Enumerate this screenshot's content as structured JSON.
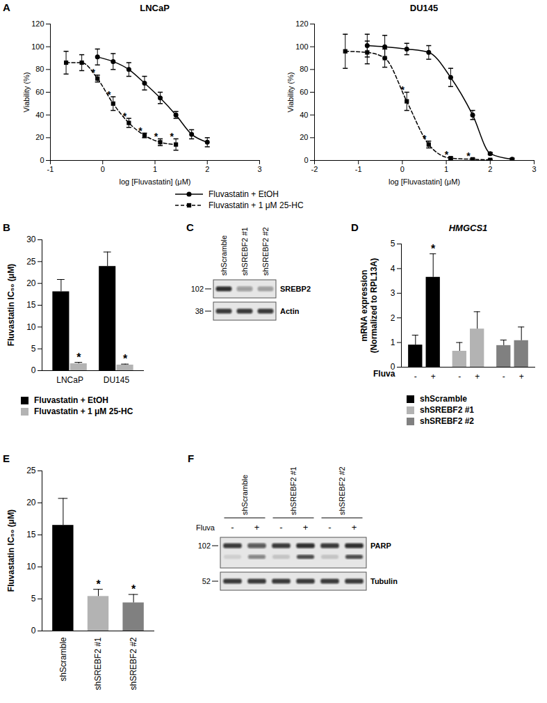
{
  "chart_data": [
    {
      "panel": "A",
      "type": "line",
      "title": "LNCaP",
      "x_label": "log [Fluvastatin] (μM)",
      "y_label": "Viability (%)",
      "x": [
        -0.7,
        -0.4,
        -0.1,
        0.2,
        0.5,
        0.8,
        1.1,
        1.4,
        1.7,
        2.0
      ],
      "xlim": [
        -1,
        3
      ],
      "xticks": [
        -1,
        0,
        1,
        2,
        3
      ],
      "ylim": [
        0,
        120
      ],
      "yticks": [
        0,
        20,
        40,
        60,
        80,
        100,
        120
      ],
      "legend": "bottom",
      "series": [
        {
          "name": "Fluvastatin + EtOH",
          "color": "#000000",
          "marker": "circle",
          "line_style": "solid",
          "values": [
            null,
            null,
            91,
            87,
            80,
            68,
            55,
            40,
            23,
            16
          ],
          "errors": [
            null,
            null,
            7,
            7,
            6,
            6,
            5,
            3,
            4,
            4
          ]
        },
        {
          "name": "Fluvastatin + 1 μM 25-HC",
          "color": "#000000",
          "marker": "square",
          "line_style": "dashed",
          "values": [
            86,
            86,
            72,
            50,
            33,
            22,
            16,
            14,
            null,
            null
          ],
          "errors": [
            10,
            7,
            3,
            6,
            4,
            2,
            3,
            5,
            null,
            null
          ],
          "significance": [
            null,
            null,
            "*",
            "*",
            "*",
            "*",
            "*",
            "*",
            null,
            null
          ]
        }
      ]
    },
    {
      "panel": "A",
      "type": "line",
      "title": "DU145",
      "x_label": "log [Fluvastatin] (μM)",
      "y_label": "Viability (%)",
      "x": [
        -1.3,
        -0.8,
        -0.4,
        0.1,
        0.6,
        1.1,
        1.6,
        2.0,
        2.5
      ],
      "xlim": [
        -2,
        3
      ],
      "xticks": [
        -2,
        -1,
        0,
        1,
        2,
        3
      ],
      "ylim": [
        0,
        120
      ],
      "yticks": [
        0,
        20,
        40,
        60,
        80,
        100,
        120
      ],
      "series": [
        {
          "name": "Fluvastatin + EtOH",
          "color": "#000000",
          "marker": "circle",
          "line_style": "solid",
          "values": [
            null,
            101,
            100,
            98,
            95,
            73,
            40,
            6,
            1
          ],
          "errors": [
            null,
            10,
            10,
            5,
            6,
            8,
            4,
            1,
            1
          ]
        },
        {
          "name": "Fluvastatin + 1 μM 25-HC",
          "color": "#000000",
          "marker": "square",
          "line_style": "dashed",
          "values": [
            96,
            95,
            90,
            52,
            14,
            2,
            1,
            0.5,
            null
          ],
          "errors": [
            15,
            10,
            8,
            8,
            3,
            1,
            1,
            0.5,
            null
          ],
          "significance": [
            null,
            null,
            null,
            "*",
            "*",
            "*",
            "*",
            null,
            null
          ]
        }
      ]
    },
    {
      "panel": "B",
      "type": "bar",
      "categories": [
        "LNCaP",
        "DU145"
      ],
      "y_label": "Fluvastatin IC₅₀ (μM)",
      "ylim": [
        0,
        30
      ],
      "yticks": [
        0,
        5,
        10,
        15,
        20,
        25,
        30
      ],
      "legend": "bottom",
      "series": [
        {
          "name": "Fluvastatin + EtOH",
          "color": "#000000",
          "values": [
            18.1,
            23.9
          ],
          "errors": [
            2.8,
            3.3
          ]
        },
        {
          "name": "Fluvastatin + 1 μM 25-HC",
          "color": "#b3b3b3",
          "values": [
            1.6,
            1.3
          ],
          "errors": [
            0.3,
            0.2
          ],
          "significance": [
            "*",
            "*"
          ]
        }
      ]
    },
    {
      "panel": "D",
      "type": "bar",
      "title": "HMGCS1",
      "categories": [
        "-",
        "+",
        "-",
        "+",
        "-",
        "+"
      ],
      "x_label": "Fluva",
      "y_label": "mRNA expression\n(Normalized to RPL13A)",
      "ylim": [
        0,
        5
      ],
      "yticks": [
        0,
        1,
        2,
        3,
        4,
        5
      ],
      "legend": "bottom",
      "series": [
        {
          "name": "shScramble",
          "color": "#000000",
          "values": [
            0.9,
            3.65,
            null,
            null,
            null,
            null
          ],
          "errors": [
            0.4,
            0.95,
            null,
            null,
            null,
            null
          ],
          "significance": [
            null,
            "*",
            null,
            null,
            null,
            null
          ]
        },
        {
          "name": "shSREBF2 #1",
          "color": "#b3b3b3",
          "values": [
            null,
            null,
            0.65,
            1.55,
            null,
            null
          ],
          "errors": [
            null,
            null,
            0.35,
            0.7,
            null,
            null
          ]
        },
        {
          "name": "shSREBF2 #2",
          "color": "#808080",
          "values": [
            null,
            null,
            null,
            null,
            0.88,
            1.08
          ],
          "errors": [
            null,
            null,
            null,
            null,
            0.22,
            0.55
          ]
        }
      ]
    },
    {
      "panel": "E",
      "type": "bar",
      "categories": [
        "shScramble",
        "shSREBF2 #1",
        "shSREBF2 #2"
      ],
      "values": [
        16.5,
        5.4,
        4.4
      ],
      "errors": [
        4.2,
        1.1,
        1.3
      ],
      "colors": [
        "#000000",
        "#b3b3b3",
        "#808080"
      ],
      "significance": [
        null,
        "*",
        "*"
      ],
      "y_label": "Fluvastatin IC₅₀ (μM)",
      "ylim": [
        0,
        25
      ],
      "yticks": [
        0,
        5,
        10,
        15,
        20,
        25
      ]
    }
  ],
  "blots": [
    {
      "panel": "C",
      "lanes": [
        "shScramble",
        "shSREBF2 #1",
        "shSREBF2 #2"
      ],
      "rows": [
        {
          "label": "SREBP2",
          "marker": 102,
          "intensity": [
            0.85,
            0.35,
            0.3
          ]
        },
        {
          "label": "Actin",
          "marker": 38,
          "intensity": [
            0.8,
            0.8,
            0.8
          ]
        }
      ]
    },
    {
      "panel": "F",
      "groups": [
        "shScramble",
        "shSREBF2 #1",
        "shSREBF2 #2"
      ],
      "treatment_label": "Fluva",
      "lanes": [
        "-",
        "+",
        "-",
        "+",
        "-",
        "+"
      ],
      "rows": [
        {
          "label": "PARP",
          "marker": 102,
          "intensity": [
            0.8,
            0.65,
            0.8,
            0.85,
            0.8,
            0.85
          ],
          "cleaved_intensity": [
            0.1,
            0.45,
            0.15,
            0.7,
            0.15,
            0.7
          ]
        },
        {
          "label": "Tubulin",
          "marker": 52,
          "intensity": [
            0.8,
            0.8,
            0.8,
            0.8,
            0.8,
            0.8
          ]
        }
      ]
    }
  ]
}
